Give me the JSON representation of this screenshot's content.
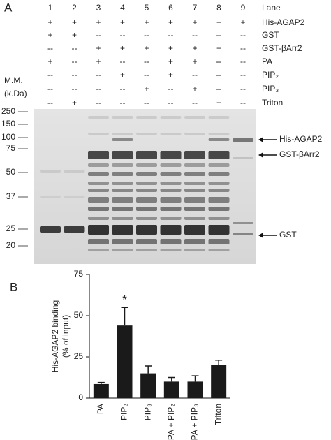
{
  "panel_a": {
    "panel_label": "A",
    "lane_header": "Lane",
    "lanes": [
      "1",
      "2",
      "3",
      "4",
      "5",
      "6",
      "7",
      "8",
      "9"
    ],
    "rows": [
      {
        "label": "His-AGAP2",
        "cells": [
          "+",
          "+",
          "+",
          "+",
          "+",
          "+",
          "+",
          "+",
          "+"
        ]
      },
      {
        "label": "GST",
        "cells": [
          "+",
          "+",
          "--",
          "--",
          "--",
          "--",
          "--",
          "--",
          "--"
        ]
      },
      {
        "label": "GST-βArr2",
        "cells": [
          "--",
          "--",
          "+",
          "+",
          "+",
          "+",
          "+",
          "+",
          "--"
        ]
      },
      {
        "label": "PA",
        "cells": [
          "+",
          "--",
          "+",
          "--",
          "--",
          "+",
          "+",
          "--",
          "--"
        ]
      },
      {
        "label": "PIP₂",
        "cells": [
          "--",
          "--",
          "--",
          "+",
          "--",
          "+",
          "--",
          "--",
          "--"
        ]
      },
      {
        "label": "PIP₃",
        "cells": [
          "--",
          "--",
          "--",
          "--",
          "+",
          "--",
          "+",
          "--",
          "--"
        ]
      },
      {
        "label": "Triton",
        "cells": [
          "--",
          "+",
          "--",
          "--",
          "--",
          "--",
          "--",
          "+",
          "--"
        ]
      }
    ],
    "mw_label": [
      "M.M.",
      "(k.Da)"
    ],
    "mw_markers": [
      "250",
      "150",
      "100",
      "75",
      "50",
      "37",
      "25",
      "20"
    ],
    "band_labels": [
      "His-AGAP2",
      "GST-βArr2",
      "GST"
    ]
  },
  "chart_data": {
    "type": "bar",
    "panel_label": "B",
    "y_label": [
      "His-AGAP2 binding",
      "(% of input)"
    ],
    "categories": [
      "PA",
      "PIP₂",
      "PIP₃",
      "PA + PIP₂",
      "PA + PIP₃",
      "Triton"
    ],
    "values": [
      8.5,
      44,
      15,
      10,
      10,
      20
    ],
    "errors": [
      1,
      11,
      4.5,
      2.5,
      3.5,
      3
    ],
    "color": "#1a1a1a",
    "ylim": [
      0,
      75
    ],
    "yticks": [
      0,
      25,
      50,
      75
    ],
    "annotations": [
      {
        "text": "*",
        "category": "PIP₂"
      }
    ]
  }
}
